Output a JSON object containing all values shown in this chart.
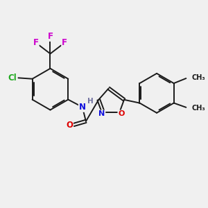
{
  "bg_color": "#f0f0f0",
  "bond_color": "#1a1a1a",
  "bond_width": 1.4,
  "dbo": 0.07,
  "atom_colors": {
    "C": "#1a1a1a",
    "N": "#1010dd",
    "O": "#dd0000",
    "F": "#cc00cc",
    "Cl": "#22aa22",
    "H": "#7070a0"
  },
  "fs": 8.5
}
